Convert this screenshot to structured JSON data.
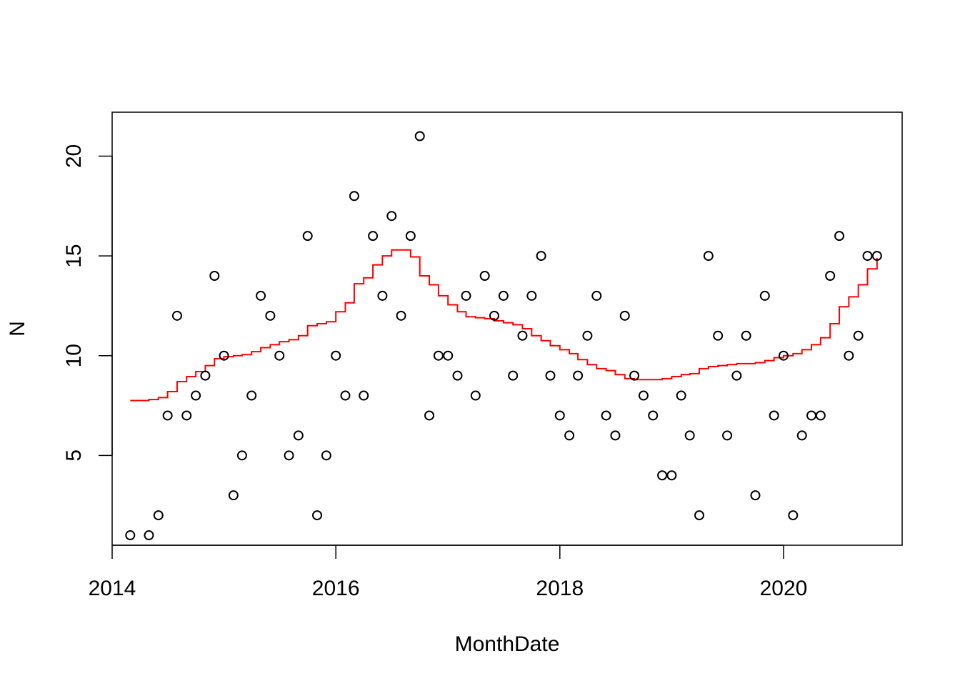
{
  "chart_data": {
    "type": "scatter",
    "title": "",
    "xlabel": "MonthDate",
    "ylabel": "N",
    "xlim": [
      "2014-01-01",
      "2021-01-22"
    ],
    "ylim": [
      0.5,
      22.2
    ],
    "x_ticks": [
      {
        "value": "2014-01-01",
        "label": "2014"
      },
      {
        "value": "2016-01-01",
        "label": "2016"
      },
      {
        "value": "2018-01-01",
        "label": "2018"
      },
      {
        "value": "2020-01-01",
        "label": "2020"
      }
    ],
    "y_ticks": [
      {
        "value": 5,
        "label": "5"
      },
      {
        "value": 10,
        "label": "10"
      },
      {
        "value": 15,
        "label": "15"
      },
      {
        "value": 20,
        "label": "20"
      }
    ],
    "grid": false,
    "legend": "none",
    "points": {
      "name": "N",
      "marker": "open-circle",
      "color": "#000000",
      "x": [
        "2014-03-01",
        "2014-05-01",
        "2014-06-01",
        "2014-07-01",
        "2014-08-01",
        "2014-09-01",
        "2014-10-01",
        "2014-11-01",
        "2014-12-01",
        "2015-01-01",
        "2015-02-01",
        "2015-03-01",
        "2015-04-01",
        "2015-05-01",
        "2015-06-01",
        "2015-07-01",
        "2015-08-01",
        "2015-09-01",
        "2015-10-01",
        "2015-11-01",
        "2015-12-01",
        "2016-01-01",
        "2016-02-01",
        "2016-03-01",
        "2016-04-01",
        "2016-05-01",
        "2016-06-01",
        "2016-07-01",
        "2016-08-01",
        "2016-09-01",
        "2016-10-01",
        "2016-11-01",
        "2016-12-01",
        "2017-01-01",
        "2017-02-01",
        "2017-03-01",
        "2017-04-01",
        "2017-05-01",
        "2017-06-01",
        "2017-07-01",
        "2017-08-01",
        "2017-09-01",
        "2017-10-01",
        "2017-11-01",
        "2017-12-01",
        "2018-01-01",
        "2018-02-01",
        "2018-03-01",
        "2018-04-01",
        "2018-05-01",
        "2018-06-01",
        "2018-07-01",
        "2018-08-01",
        "2018-09-01",
        "2018-10-01",
        "2018-11-01",
        "2018-12-01",
        "2019-01-01",
        "2019-02-01",
        "2019-03-01",
        "2019-04-01",
        "2019-05-01",
        "2019-06-01",
        "2019-07-01",
        "2019-08-01",
        "2019-09-01",
        "2019-10-01",
        "2019-11-01",
        "2019-12-01",
        "2020-01-01",
        "2020-02-01",
        "2020-03-01",
        "2020-04-01",
        "2020-05-01",
        "2020-06-01",
        "2020-07-01",
        "2020-08-01",
        "2020-09-01",
        "2020-10-01",
        "2020-11-01"
      ],
      "y": [
        1,
        1,
        2,
        7,
        12,
        7,
        8,
        9,
        14,
        10,
        3,
        5,
        8,
        13,
        12,
        10,
        5,
        6,
        16,
        2,
        5,
        10,
        8,
        18,
        8,
        16,
        13,
        17,
        12,
        16,
        21,
        7,
        10,
        10,
        9,
        13,
        8,
        14,
        12,
        13,
        9,
        11,
        13,
        15,
        9,
        7,
        6,
        9,
        11,
        13,
        7,
        6,
        12,
        9,
        8,
        7,
        4,
        4,
        8,
        6,
        2,
        15,
        11,
        6,
        9,
        11,
        3,
        13,
        7,
        10,
        2,
        6,
        7,
        7,
        14,
        16,
        10,
        11,
        15,
        15
      ]
    },
    "trend": {
      "name": "",
      "type": "step",
      "color": "#ff0000",
      "x": [
        "2014-03-01",
        "2014-04-01",
        "2014-05-01",
        "2014-06-01",
        "2014-07-01",
        "2014-08-01",
        "2014-09-01",
        "2014-10-01",
        "2014-11-01",
        "2014-12-01",
        "2015-01-01",
        "2015-02-01",
        "2015-03-01",
        "2015-04-01",
        "2015-05-01",
        "2015-06-01",
        "2015-07-01",
        "2015-08-01",
        "2015-09-01",
        "2015-10-01",
        "2015-11-01",
        "2015-12-01",
        "2016-01-01",
        "2016-02-01",
        "2016-03-01",
        "2016-04-01",
        "2016-05-01",
        "2016-06-01",
        "2016-07-01",
        "2016-08-01",
        "2016-09-01",
        "2016-10-01",
        "2016-11-01",
        "2016-12-01",
        "2017-01-01",
        "2017-02-01",
        "2017-03-01",
        "2017-04-01",
        "2017-05-01",
        "2017-06-01",
        "2017-07-01",
        "2017-08-01",
        "2017-09-01",
        "2017-10-01",
        "2017-11-01",
        "2017-12-01",
        "2018-01-01",
        "2018-02-01",
        "2018-03-01",
        "2018-04-01",
        "2018-05-01",
        "2018-06-01",
        "2018-07-01",
        "2018-08-01",
        "2018-09-01",
        "2018-10-01",
        "2018-11-01",
        "2018-12-01",
        "2019-01-01",
        "2019-02-01",
        "2019-03-01",
        "2019-04-01",
        "2019-05-01",
        "2019-06-01",
        "2019-07-01",
        "2019-08-01",
        "2019-09-01",
        "2019-10-01",
        "2019-11-01",
        "2019-12-01",
        "2020-01-01",
        "2020-02-01",
        "2020-03-01",
        "2020-04-01",
        "2020-05-01",
        "2020-06-01",
        "2020-07-01",
        "2020-08-01",
        "2020-09-01",
        "2020-10-01",
        "2020-11-01"
      ],
      "y": [
        7.75,
        7.75,
        7.8,
        7.9,
        8.2,
        8.7,
        8.95,
        9.2,
        9.5,
        9.85,
        9.95,
        10.0,
        10.05,
        10.2,
        10.4,
        10.55,
        10.7,
        10.8,
        11.0,
        11.5,
        11.6,
        11.7,
        12.2,
        12.65,
        13.6,
        13.9,
        14.55,
        15.0,
        15.3,
        15.3,
        14.95,
        14.0,
        13.55,
        13.0,
        12.55,
        12.2,
        11.95,
        11.9,
        11.85,
        11.75,
        11.65,
        11.55,
        11.35,
        11.0,
        10.75,
        10.5,
        10.3,
        10.1,
        9.8,
        9.55,
        9.35,
        9.25,
        9.05,
        8.85,
        8.8,
        8.8,
        8.8,
        8.85,
        8.95,
        9.05,
        9.1,
        9.35,
        9.45,
        9.5,
        9.55,
        9.6,
        9.6,
        9.65,
        9.75,
        9.9,
        10.0,
        10.1,
        10.3,
        10.55,
        10.9,
        11.6,
        12.45,
        12.95,
        13.55,
        14.35,
        14.9
      ]
    }
  }
}
